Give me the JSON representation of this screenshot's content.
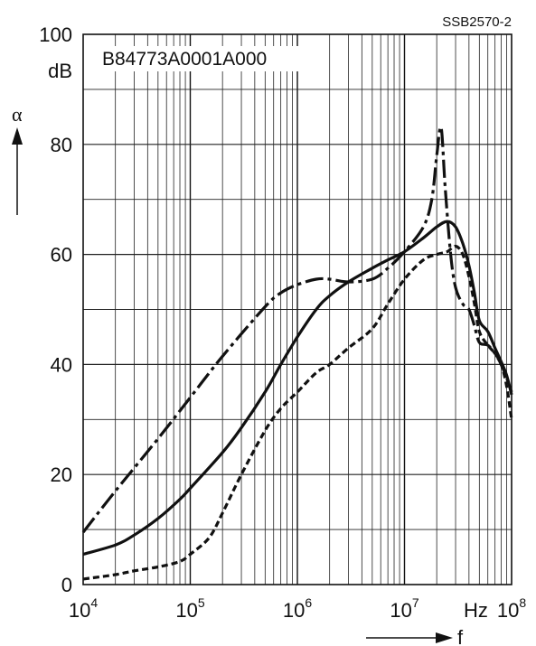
{
  "figure_code": "SSB2570-2",
  "chart_data": {
    "type": "line",
    "title": "B84773A0001A000",
    "x_scale": "log",
    "xlim": [
      10000,
      100000000
    ],
    "ylim": [
      0,
      100
    ],
    "grid": true,
    "y_unit": "dB",
    "x_unit": "Hz",
    "ylabel": "α",
    "xlabel": "f",
    "y_ticks": [
      "0",
      "20",
      "40",
      "60",
      "80",
      "100"
    ],
    "x_ticks": [
      {
        "base": "10",
        "exp": "4"
      },
      {
        "base": "10",
        "exp": "5"
      },
      {
        "base": "10",
        "exp": "6"
      },
      {
        "base": "10",
        "exp": "7"
      },
      {
        "base": "10",
        "exp": "8"
      }
    ],
    "series": [
      {
        "style": "solid",
        "points": [
          [
            10000,
            5.5
          ],
          [
            20000,
            7.2
          ],
          [
            30000,
            9
          ],
          [
            50000,
            12
          ],
          [
            80000,
            15.5
          ],
          [
            100000,
            17.5
          ],
          [
            200000,
            24
          ],
          [
            300000,
            28.5
          ],
          [
            500000,
            35
          ],
          [
            700000,
            40
          ],
          [
            1000000,
            45
          ],
          [
            1500000,
            50
          ],
          [
            2000000,
            52.5
          ],
          [
            3000000,
            55
          ],
          [
            5000000,
            57.5
          ],
          [
            7000000,
            59
          ],
          [
            10000000,
            60.5
          ],
          [
            15000000,
            63
          ],
          [
            20000000,
            65
          ],
          [
            25000000,
            66
          ],
          [
            30000000,
            65
          ],
          [
            35000000,
            62
          ],
          [
            40000000,
            58
          ],
          [
            45000000,
            53
          ],
          [
            50000000,
            48
          ],
          [
            60000000,
            46
          ],
          [
            70000000,
            43
          ],
          [
            80000000,
            40.5
          ],
          [
            90000000,
            38
          ],
          [
            100000000,
            34.5
          ]
        ]
      },
      {
        "style": "dashed",
        "points": [
          [
            10000,
            1
          ],
          [
            20000,
            1.8
          ],
          [
            30000,
            2.5
          ],
          [
            50000,
            3.2
          ],
          [
            80000,
            4.2
          ],
          [
            100000,
            5.5
          ],
          [
            150000,
            8.5
          ],
          [
            200000,
            13
          ],
          [
            300000,
            20
          ],
          [
            500000,
            28
          ],
          [
            700000,
            32
          ],
          [
            1000000,
            35
          ],
          [
            1500000,
            38.5
          ],
          [
            2000000,
            40
          ],
          [
            3000000,
            43
          ],
          [
            5000000,
            46.5
          ],
          [
            7000000,
            51
          ],
          [
            10000000,
            55.5
          ],
          [
            15000000,
            59
          ],
          [
            20000000,
            60
          ],
          [
            25000000,
            60.5
          ],
          [
            30000000,
            61.5
          ],
          [
            35000000,
            60
          ],
          [
            40000000,
            56
          ],
          [
            45000000,
            51
          ],
          [
            50000000,
            46
          ],
          [
            60000000,
            43.5
          ],
          [
            70000000,
            42
          ],
          [
            80000000,
            40
          ],
          [
            90000000,
            36
          ],
          [
            100000000,
            30
          ]
        ]
      },
      {
        "style": "dash-dot",
        "points": [
          [
            10000,
            9.5
          ],
          [
            20000,
            17
          ],
          [
            50000,
            26.5
          ],
          [
            100000,
            34
          ],
          [
            200000,
            41.5
          ],
          [
            500000,
            50.5
          ],
          [
            700000,
            53
          ],
          [
            1000000,
            54.5
          ],
          [
            1500000,
            55.5
          ],
          [
            2000000,
            55.5
          ],
          [
            3000000,
            55
          ],
          [
            5000000,
            55.5
          ],
          [
            7000000,
            57.5
          ],
          [
            10000000,
            60.5
          ],
          [
            15000000,
            65
          ],
          [
            18000000,
            70
          ],
          [
            20000000,
            78
          ],
          [
            22000000,
            83
          ],
          [
            24000000,
            72
          ],
          [
            27000000,
            60
          ],
          [
            30000000,
            54
          ],
          [
            35000000,
            51
          ],
          [
            40000000,
            50
          ],
          [
            45000000,
            47
          ],
          [
            50000000,
            44
          ],
          [
            60000000,
            43.5
          ],
          [
            70000000,
            42
          ],
          [
            80000000,
            40
          ],
          [
            90000000,
            37.5
          ],
          [
            100000000,
            35
          ]
        ]
      }
    ]
  }
}
